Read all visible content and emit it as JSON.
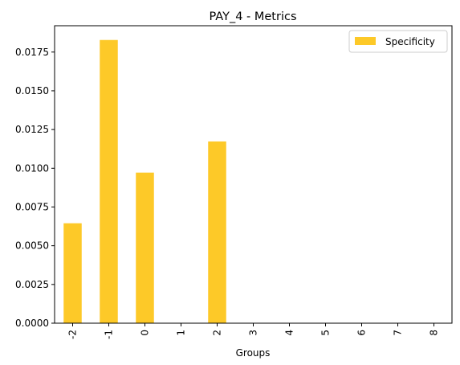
{
  "chart_data": {
    "type": "bar",
    "title": "PAY_4 - Metrics",
    "xlabel": "Groups",
    "ylabel": "",
    "categories": [
      "-2",
      "-1",
      "0",
      "1",
      "2",
      "3",
      "4",
      "5",
      "6",
      "7",
      "8"
    ],
    "series": [
      {
        "name": "Specificity",
        "color": "#fdc928",
        "values": [
          0.00645,
          0.01828,
          0.00972,
          0,
          0.01173,
          0,
          0,
          0,
          0,
          0,
          0
        ]
      }
    ],
    "ylim": [
      0,
      0.0192
    ],
    "yticks": [
      "0.0000",
      "0.0025",
      "0.0050",
      "0.0075",
      "0.0100",
      "0.0125",
      "0.0150",
      "0.0175"
    ],
    "grid": false,
    "legend_position": "top-right"
  }
}
